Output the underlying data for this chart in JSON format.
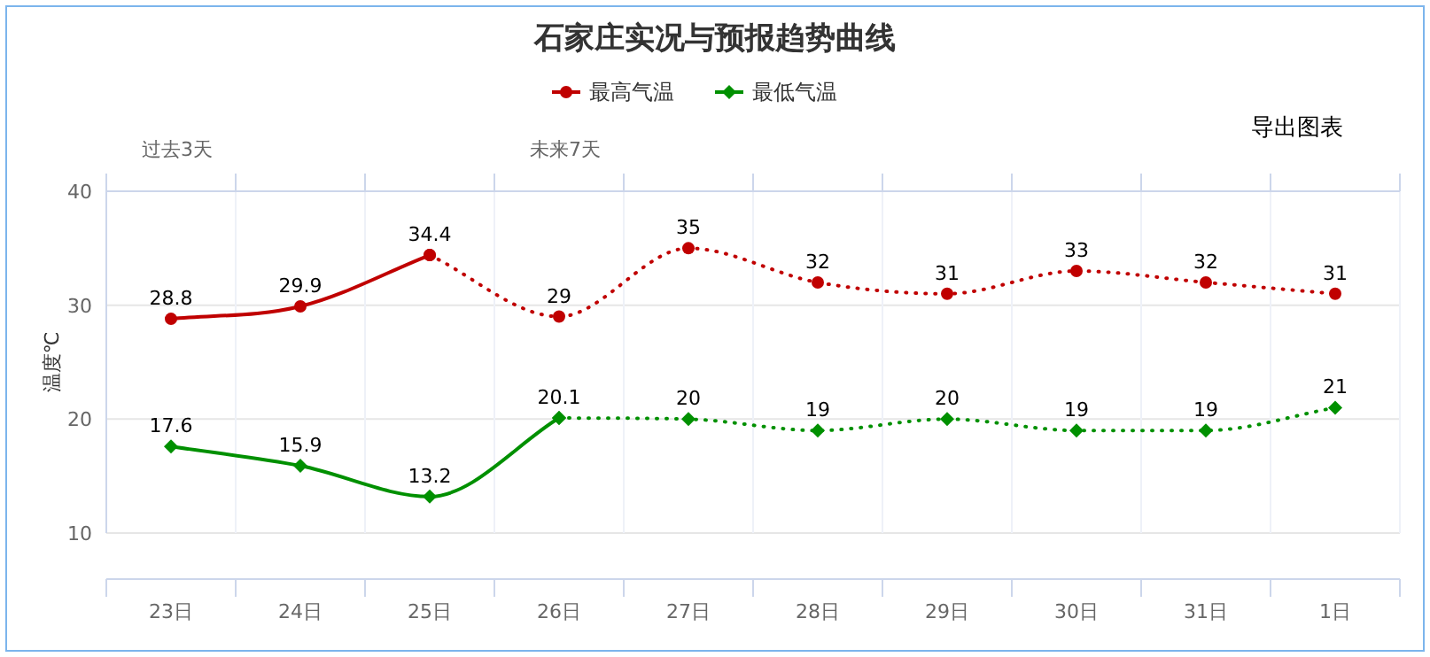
{
  "chart_data": {
    "type": "line",
    "title": "石家庄实况与预报趋势曲线",
    "ylabel": "温度℃",
    "categories": [
      "23日",
      "24日",
      "25日",
      "26日",
      "27日",
      "28日",
      "29日",
      "30日",
      "31日",
      "1日"
    ],
    "series": [
      {
        "name": "最高气温",
        "color": "#c00000",
        "marker": "circle",
        "line_style": "solid",
        "values": [
          28.8,
          29.9,
          34.4,
          null,
          null,
          null,
          null,
          null,
          null,
          null
        ],
        "value_labels": [
          "28.8",
          "29.9",
          "34.4",
          null,
          null,
          null,
          null,
          null,
          null,
          null
        ]
      },
      {
        "color": "#c00000",
        "marker": "circle",
        "line_style": "dotted",
        "values": [
          null,
          null,
          34.4,
          29,
          35,
          32,
          31,
          33,
          32,
          31
        ],
        "value_labels": [
          null,
          null,
          null,
          "29",
          "35",
          "32",
          "31",
          "33",
          "32",
          "31"
        ]
      },
      {
        "name": "最低气温",
        "color": "#009000",
        "marker": "diamond",
        "line_style": "solid",
        "values": [
          17.6,
          15.9,
          13.2,
          20.1,
          null,
          null,
          null,
          null,
          null,
          null
        ],
        "value_labels": [
          "17.6",
          "15.9",
          "13.2",
          "20.1",
          null,
          null,
          null,
          null,
          null,
          null
        ]
      },
      {
        "color": "#009000",
        "marker": "diamond",
        "line_style": "dotted",
        "values": [
          null,
          null,
          null,
          20.1,
          20,
          19,
          20,
          19,
          19,
          21
        ],
        "value_labels": [
          null,
          null,
          null,
          null,
          "20",
          "19",
          "20",
          "19",
          "19",
          "21"
        ]
      }
    ],
    "ylim": [
      10,
      40
    ],
    "yticks": [
      10,
      20,
      30,
      40
    ],
    "grid": true,
    "legend": "top",
    "annotations": [
      "过去3天",
      "未来7天",
      "导出图表"
    ]
  }
}
